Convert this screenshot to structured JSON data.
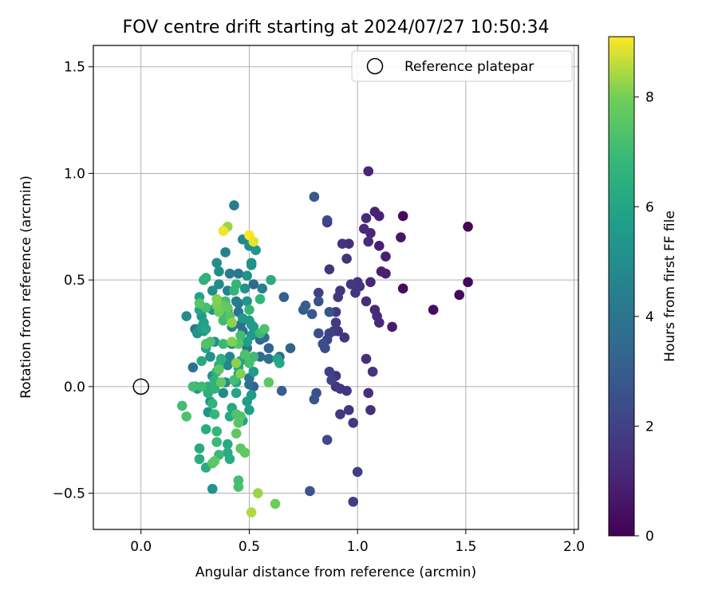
{
  "chart_data": {
    "type": "scatter",
    "title": "FOV centre drift starting at 2024/07/27 10:50:34",
    "xlabel": "Angular distance from reference (arcmin)",
    "ylabel": "Rotation from reference (arcmin)",
    "xlim": [
      -0.22,
      2.02
    ],
    "ylim": [
      -0.67,
      1.6
    ],
    "x_ticks": [
      0.0,
      0.5,
      1.0,
      1.5,
      2.0
    ],
    "x_tick_labels": [
      "0.0",
      "0.5",
      "1.0",
      "1.5",
      "2.0"
    ],
    "y_ticks": [
      -0.5,
      0.0,
      0.5,
      1.0,
      1.5
    ],
    "y_tick_labels": [
      "−0.5",
      "0.0",
      "0.5",
      "1.0",
      "1.5"
    ],
    "grid": true,
    "legend": {
      "placement": "top-right",
      "label": "Reference platepar"
    },
    "reference_point": {
      "x": 0.0,
      "y": 0.0
    },
    "colorbar": {
      "label": "Hours from first FF file",
      "colormap": "viridis",
      "range": [
        0,
        9.1
      ],
      "ticks": [
        0,
        2,
        4,
        6,
        8
      ],
      "tick_labels": [
        "0",
        "2",
        "4",
        "6",
        "8"
      ]
    },
    "points": [
      [
        1.51,
        0.75,
        0.1
      ],
      [
        1.51,
        0.49,
        0.2
      ],
      [
        1.47,
        0.43,
        0.25
      ],
      [
        1.35,
        0.36,
        0.35
      ],
      [
        1.21,
        0.8,
        0.3
      ],
      [
        1.21,
        0.46,
        0.3
      ],
      [
        1.2,
        0.7,
        0.6
      ],
      [
        1.16,
        0.28,
        0.8
      ],
      [
        1.13,
        0.53,
        0.9
      ],
      [
        1.13,
        0.61,
        0.9
      ],
      [
        1.11,
        0.54,
        0.9
      ],
      [
        1.1,
        0.66,
        0.9
      ],
      [
        1.1,
        0.8,
        1.0
      ],
      [
        1.08,
        0.82,
        1.0
      ],
      [
        1.05,
        1.01,
        1.1
      ],
      [
        1.06,
        0.49,
        1.1
      ],
      [
        1.06,
        0.72,
        1.1
      ],
      [
        1.05,
        0.68,
        1.2
      ],
      [
        1.04,
        0.79,
        1.2
      ],
      [
        1.03,
        0.74,
        1.2
      ],
      [
        1.04,
        0.4,
        1.3
      ],
      [
        1.08,
        0.36,
        1.2
      ],
      [
        1.09,
        0.33,
        1.2
      ],
      [
        1.1,
        0.3,
        1.2
      ],
      [
        1.04,
        0.13,
        1.3
      ],
      [
        1.05,
        -0.03,
        1.3
      ],
      [
        1.06,
        -0.11,
        1.4
      ],
      [
        1.07,
        0.07,
        1.5
      ],
      [
        1.01,
        0.47,
        1.5
      ],
      [
        1.0,
        0.49,
        1.6
      ],
      [
        0.99,
        0.44,
        1.6
      ],
      [
        0.97,
        0.48,
        1.7
      ],
      [
        0.96,
        0.67,
        1.3
      ],
      [
        0.95,
        0.6,
        1.5
      ],
      [
        0.93,
        0.67,
        1.5
      ],
      [
        0.92,
        0.45,
        1.6
      ],
      [
        0.91,
        0.42,
        1.7
      ],
      [
        0.9,
        0.35,
        1.7
      ],
      [
        0.9,
        0.3,
        1.8
      ],
      [
        0.94,
        0.23,
        1.6
      ],
      [
        0.91,
        0.26,
        1.7
      ],
      [
        0.89,
        0.26,
        1.8
      ],
      [
        0.87,
        0.55,
        1.6
      ],
      [
        0.87,
        0.25,
        2.0
      ],
      [
        0.86,
        0.22,
        2.1
      ],
      [
        0.86,
        0.77,
        1.8
      ],
      [
        0.86,
        0.78,
        2.2
      ],
      [
        0.82,
        0.44,
        2.0
      ],
      [
        0.9,
        0.05,
        1.5
      ],
      [
        0.9,
        0.0,
        1.6
      ],
      [
        0.92,
        -0.01,
        1.7
      ],
      [
        0.95,
        -0.02,
        1.6
      ],
      [
        0.96,
        -0.11,
        1.6
      ],
      [
        0.92,
        -0.13,
        1.7
      ],
      [
        0.98,
        -0.17,
        1.8
      ],
      [
        1.0,
        -0.4,
        1.9
      ],
      [
        0.98,
        -0.54,
        1.9
      ],
      [
        0.87,
        0.07,
        2.0
      ],
      [
        0.88,
        0.03,
        2.1
      ],
      [
        0.86,
        -0.25,
        2.3
      ],
      [
        0.85,
        0.18,
        2.4
      ],
      [
        0.84,
        0.2,
        2.5
      ],
      [
        0.82,
        0.25,
        2.5
      ],
      [
        0.81,
        -0.03,
        2.6
      ],
      [
        0.8,
        -0.06,
        2.7
      ],
      [
        0.78,
        -0.49,
        2.7
      ],
      [
        0.82,
        0.4,
        2.6
      ],
      [
        0.79,
        0.34,
        2.9
      ],
      [
        0.76,
        0.38,
        3.0
      ],
      [
        0.75,
        0.36,
        3.0
      ],
      [
        0.8,
        0.89,
        2.8
      ],
      [
        0.87,
        0.35,
        2.7
      ],
      [
        0.69,
        0.18,
        3.2
      ],
      [
        0.66,
        0.42,
        3.1
      ],
      [
        0.65,
        -0.02,
        3.1
      ],
      [
        0.64,
        0.14,
        3.3
      ],
      [
        0.59,
        0.18,
        3.3
      ],
      [
        0.55,
        0.22,
        3.4
      ],
      [
        0.52,
        0.48,
        3.5
      ],
      [
        0.52,
        0.0,
        3.3
      ],
      [
        0.55,
        0.14,
        3.6
      ],
      [
        0.57,
        0.23,
        3.6
      ],
      [
        0.59,
        0.13,
        3.8
      ],
      [
        0.56,
        0.46,
        4.4
      ],
      [
        0.5,
        0.01,
        3.8
      ],
      [
        0.5,
        0.04,
        4.0
      ],
      [
        0.49,
        0.18,
        3.8
      ],
      [
        0.47,
        0.26,
        3.8
      ],
      [
        0.46,
        0.29,
        3.9
      ],
      [
        0.45,
        0.35,
        4.0
      ],
      [
        0.45,
        0.39,
        4.1
      ],
      [
        0.45,
        0.53,
        4.1
      ],
      [
        0.43,
        0.85,
        4.3
      ],
      [
        0.44,
        0.4,
        4.3
      ],
      [
        0.41,
        0.53,
        4.3
      ],
      [
        0.4,
        0.45,
        4.5
      ],
      [
        0.39,
        0.63,
        4.5
      ],
      [
        0.4,
        0.36,
        4.5
      ],
      [
        0.42,
        0.28,
        4.6
      ],
      [
        0.42,
        0.2,
        4.6
      ],
      [
        0.41,
        0.14,
        4.7
      ],
      [
        0.4,
        0.1,
        4.8
      ],
      [
        0.39,
        0.02,
        4.8
      ],
      [
        0.38,
        -0.03,
        4.9
      ],
      [
        0.36,
        0.4,
        4.8
      ],
      [
        0.36,
        0.48,
        4.9
      ],
      [
        0.36,
        0.54,
        5.0
      ],
      [
        0.35,
        0.58,
        5.0
      ],
      [
        0.33,
        0.45,
        5.0
      ],
      [
        0.33,
        0.36,
        5.1
      ],
      [
        0.34,
        0.21,
        5.1
      ],
      [
        0.32,
        0.14,
        5.1
      ],
      [
        0.33,
        0.05,
        5.2
      ],
      [
        0.32,
        -0.07,
        5.3
      ],
      [
        0.31,
        -0.12,
        5.3
      ],
      [
        0.33,
        -0.48,
        5.3
      ],
      [
        0.25,
        0.27,
        4.2
      ],
      [
        0.24,
        0.09,
        3.8
      ],
      [
        0.21,
        0.33,
        5.0
      ],
      [
        0.26,
        0.25,
        5.2
      ],
      [
        0.25,
        0.0,
        5.4
      ],
      [
        0.26,
        -0.01,
        5.5
      ],
      [
        0.28,
        0.33,
        5.5
      ],
      [
        0.29,
        0.26,
        5.5
      ],
      [
        0.29,
        0.3,
        5.8
      ],
      [
        0.28,
        0.28,
        5.8
      ],
      [
        0.27,
        0.42,
        5.9
      ],
      [
        0.27,
        0.36,
        6.0
      ],
      [
        0.3,
        0.37,
        6.0
      ],
      [
        0.3,
        0.27,
        6.0
      ],
      [
        0.3,
        0.18,
        6.1
      ],
      [
        0.28,
        0.12,
        6.2
      ],
      [
        0.27,
        -0.29,
        6.2
      ],
      [
        0.27,
        -0.34,
        6.3
      ],
      [
        0.3,
        -0.38,
        6.3
      ],
      [
        0.3,
        -0.2,
        6.3
      ],
      [
        0.31,
        -0.03,
        6.4
      ],
      [
        0.31,
        0.0,
        6.4
      ],
      [
        0.29,
        0.5,
        6.5
      ],
      [
        0.3,
        0.51,
        6.6
      ],
      [
        0.47,
        0.69,
        4.8
      ],
      [
        0.5,
        0.66,
        4.9
      ],
      [
        0.51,
        0.67,
        5.0
      ],
      [
        0.53,
        0.64,
        5.3
      ],
      [
        0.51,
        0.58,
        5.1
      ],
      [
        0.51,
        0.57,
        5.2
      ],
      [
        0.49,
        0.52,
        5.2
      ],
      [
        0.48,
        0.46,
        5.3
      ],
      [
        0.49,
        0.4,
        5.4
      ],
      [
        0.47,
        0.32,
        5.5
      ],
      [
        0.5,
        0.31,
        5.6
      ],
      [
        0.51,
        0.29,
        5.6
      ],
      [
        0.52,
        0.28,
        5.6
      ],
      [
        0.51,
        0.24,
        5.5
      ],
      [
        0.49,
        0.21,
        5.8
      ],
      [
        0.52,
        0.07,
        5.6
      ],
      [
        0.51,
        -0.04,
        5.6
      ],
      [
        0.49,
        -0.07,
        5.7
      ],
      [
        0.5,
        -0.11,
        5.8
      ],
      [
        0.47,
        -0.16,
        5.8
      ],
      [
        0.46,
        0.12,
        5.9
      ],
      [
        0.45,
        0.09,
        5.9
      ],
      [
        0.45,
        0.06,
        6.0
      ],
      [
        0.44,
        0.02,
        6.0
      ],
      [
        0.44,
        -0.03,
        6.0
      ],
      [
        0.42,
        -0.1,
        6.1
      ],
      [
        0.41,
        -0.14,
        6.1
      ],
      [
        0.4,
        -0.27,
        6.2
      ],
      [
        0.4,
        -0.31,
        6.3
      ],
      [
        0.41,
        -0.34,
        6.3
      ],
      [
        0.37,
        0.13,
        6.5
      ],
      [
        0.36,
        0.1,
        6.5
      ],
      [
        0.35,
        0.07,
        6.6
      ],
      [
        0.34,
        0.03,
        6.6
      ],
      [
        0.34,
        -0.01,
        6.6
      ],
      [
        0.33,
        -0.08,
        6.7
      ],
      [
        0.34,
        -0.13,
        6.8
      ],
      [
        0.35,
        -0.21,
        6.8
      ],
      [
        0.35,
        -0.26,
        6.9
      ],
      [
        0.36,
        -0.32,
        6.9
      ],
      [
        0.38,
        0.2,
        6.9
      ],
      [
        0.38,
        0.31,
        7.0
      ],
      [
        0.38,
        0.35,
        7.0
      ],
      [
        0.39,
        0.4,
        7.1
      ],
      [
        0.43,
        0.45,
        6.8
      ],
      [
        0.44,
        0.48,
        6.8
      ],
      [
        0.5,
        0.36,
        6.8
      ],
      [
        0.55,
        0.41,
        6.7
      ],
      [
        0.6,
        0.5,
        6.3
      ],
      [
        0.64,
        0.11,
        6.2
      ],
      [
        0.63,
        0.13,
        6.0
      ],
      [
        0.55,
        0.25,
        6.9
      ],
      [
        0.57,
        0.27,
        7.3
      ],
      [
        0.59,
        0.02,
        7.6
      ],
      [
        0.52,
        0.14,
        7.0
      ],
      [
        0.5,
        0.11,
        7.2
      ],
      [
        0.48,
        0.15,
        7.3
      ],
      [
        0.46,
        0.24,
        7.1
      ],
      [
        0.45,
        0.2,
        7.5
      ],
      [
        0.43,
        0.03,
        7.1
      ],
      [
        0.44,
        -0.13,
        7.4
      ],
      [
        0.46,
        -0.14,
        7.4
      ],
      [
        0.45,
        -0.17,
        7.5
      ],
      [
        0.44,
        -0.22,
        7.6
      ],
      [
        0.46,
        -0.29,
        7.6
      ],
      [
        0.48,
        -0.31,
        7.7
      ],
      [
        0.45,
        -0.44,
        7.1
      ],
      [
        0.45,
        -0.47,
        7.2
      ],
      [
        0.33,
        -0.36,
        7.5
      ],
      [
        0.34,
        -0.35,
        7.6
      ],
      [
        0.28,
        0.0,
        7.0
      ],
      [
        0.24,
        0.0,
        7.1
      ],
      [
        0.21,
        -0.14,
        7.3
      ],
      [
        0.19,
        -0.09,
        7.1
      ],
      [
        0.3,
        0.2,
        7.4
      ],
      [
        0.32,
        0.21,
        7.3
      ],
      [
        0.36,
        0.08,
        7.6
      ],
      [
        0.37,
        0.02,
        7.7
      ],
      [
        0.41,
        0.33,
        7.5
      ],
      [
        0.4,
        0.37,
        7.7
      ],
      [
        0.38,
        0.38,
        7.7
      ],
      [
        0.3,
        0.37,
        7.2
      ],
      [
        0.27,
        0.39,
        7.5
      ],
      [
        0.36,
        0.35,
        7.9
      ],
      [
        0.35,
        0.38,
        8.0
      ],
      [
        0.35,
        0.41,
        8.1
      ],
      [
        0.42,
        0.3,
        8.2
      ],
      [
        0.42,
        0.21,
        8.1
      ],
      [
        0.44,
        0.11,
        8.2
      ],
      [
        0.4,
        0.75,
        8.3
      ],
      [
        0.38,
        0.73,
        9.0
      ],
      [
        0.5,
        0.71,
        9.1
      ],
      [
        0.52,
        0.68,
        8.9
      ],
      [
        0.54,
        -0.5,
        8.3
      ],
      [
        0.51,
        -0.59,
        8.5
      ],
      [
        0.62,
        -0.55,
        7.9
      ],
      [
        0.46,
        0.06,
        8.1
      ]
    ]
  }
}
